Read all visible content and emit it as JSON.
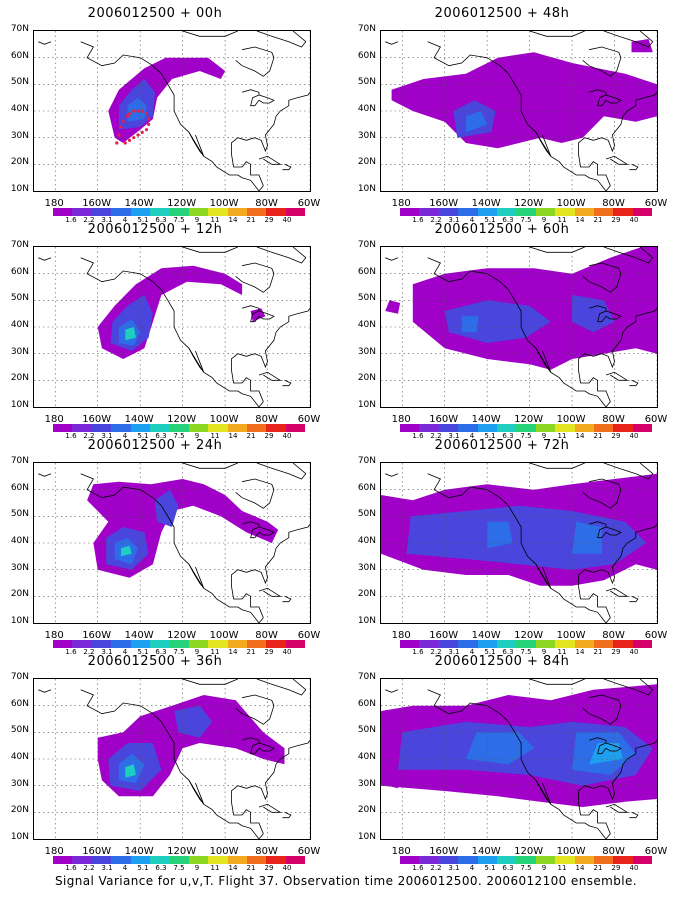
{
  "panels": [
    {
      "id": "p00",
      "title": "2006012500 + 00h"
    },
    {
      "id": "p48",
      "title": "2006012500 + 48h"
    },
    {
      "id": "p12",
      "title": "2006012500 + 12h"
    },
    {
      "id": "p60",
      "title": "2006012500 + 60h"
    },
    {
      "id": "p24",
      "title": "2006012500 + 24h"
    },
    {
      "id": "p72",
      "title": "2006012500 + 72h"
    },
    {
      "id": "p36",
      "title": "2006012500 + 36h"
    },
    {
      "id": "p84",
      "title": "2006012500 + 84h"
    }
  ],
  "lat_labels": [
    "70N",
    "60N",
    "50N",
    "40N",
    "30N",
    "20N",
    "10N"
  ],
  "lon_labels": [
    "180",
    "160W",
    "140W",
    "120W",
    "100W",
    "80W",
    "60W"
  ],
  "colorbar": {
    "labels": [
      "1.6",
      "2.2",
      "3.1",
      "4",
      "5.1",
      "6.3",
      "7.5",
      "9",
      "11",
      "14",
      "21",
      "29",
      "40"
    ],
    "colors": [
      "#a000c8",
      "#7a28d8",
      "#4a45dc",
      "#2d6ee8",
      "#1ea0f0",
      "#1ecfc0",
      "#26d37a",
      "#8bd722",
      "#e3e521",
      "#f2ab1f",
      "#f06e1d",
      "#e8241a",
      "#d5006a"
    ]
  },
  "footer": "Signal Variance for u,v,T. Flight 37. Observation time 2006012500. 2006012100 ensemble."
}
